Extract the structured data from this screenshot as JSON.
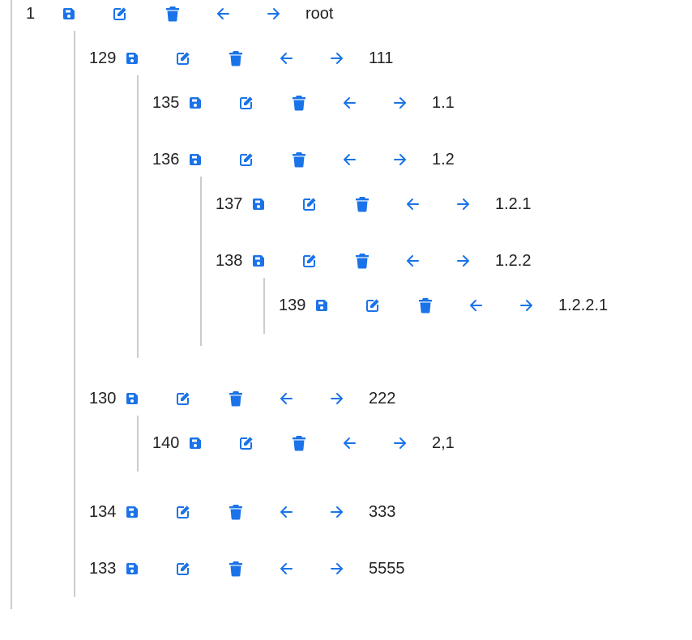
{
  "tree": {
    "nodes": [
      {
        "id": "1",
        "text": "root"
      },
      {
        "id": "129",
        "text": "111"
      },
      {
        "id": "135",
        "text": "1.1"
      },
      {
        "id": "136",
        "text": "1.2"
      },
      {
        "id": "137",
        "text": "1.2.1"
      },
      {
        "id": "138",
        "text": "1.2.2"
      },
      {
        "id": "139",
        "text": "1.2.2.1"
      },
      {
        "id": "130",
        "text": "222"
      },
      {
        "id": "140",
        "text": "2,1"
      },
      {
        "id": "134",
        "text": "333"
      },
      {
        "id": "133",
        "text": "5555"
      }
    ],
    "actions": {
      "save_icon": "floppy-disk-icon",
      "edit_icon": "edit-square-icon",
      "delete_icon": "trash-icon",
      "outdent_icon": "arrow-left-icon",
      "indent_icon": "arrow-right-icon"
    }
  },
  "colors": {
    "accent": "#1a73e8",
    "text": "#222222",
    "guide_line": "#cccccc",
    "background": "#ffffff"
  }
}
